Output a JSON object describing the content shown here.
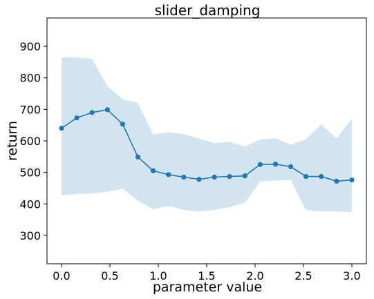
{
  "chart_data": {
    "type": "line",
    "title": "slider_damping",
    "xlabel": "parameter value",
    "ylabel": "return",
    "xlim": [
      -0.15,
      3.15
    ],
    "ylim": [
      210,
      990
    ],
    "x_ticks": [
      0.0,
      0.5,
      1.0,
      1.5,
      2.0,
      2.5,
      3.0
    ],
    "x_tick_labels": [
      "0.0",
      "0.5",
      "1.0",
      "1.5",
      "2.0",
      "2.5",
      "3.0"
    ],
    "y_ticks": [
      300,
      400,
      500,
      600,
      700,
      800,
      900
    ],
    "y_tick_labels": [
      "300",
      "400",
      "500",
      "600",
      "700",
      "800",
      "900"
    ],
    "grid": false,
    "colors": {
      "line": "#1f77b4",
      "band": "#1f77b4",
      "band_opacity": 0.2
    },
    "series": [
      {
        "x": [
          0.0,
          0.158,
          0.316,
          0.474,
          0.632,
          0.789,
          0.947,
          1.105,
          1.263,
          1.421,
          1.579,
          1.737,
          1.895,
          2.053,
          2.211,
          2.368,
          2.526,
          2.684,
          2.842,
          3.0
        ],
        "values": [
          640,
          673,
          690,
          699,
          653,
          549,
          505,
          493,
          485,
          478,
          485,
          487,
          489,
          525,
          526,
          518,
          487,
          487,
          472,
          476
        ],
        "upper": [
          865,
          865,
          860,
          773,
          732,
          720,
          620,
          628,
          621,
          607,
          593,
          597,
          582,
          604,
          608,
          588,
          605,
          652,
          607,
          670
        ],
        "lower": [
          427,
          431,
          433,
          439,
          448,
          410,
          383,
          394,
          381,
          376,
          381,
          390,
          404,
          471,
          474,
          476,
          380,
          376,
          376,
          374
        ]
      }
    ]
  }
}
